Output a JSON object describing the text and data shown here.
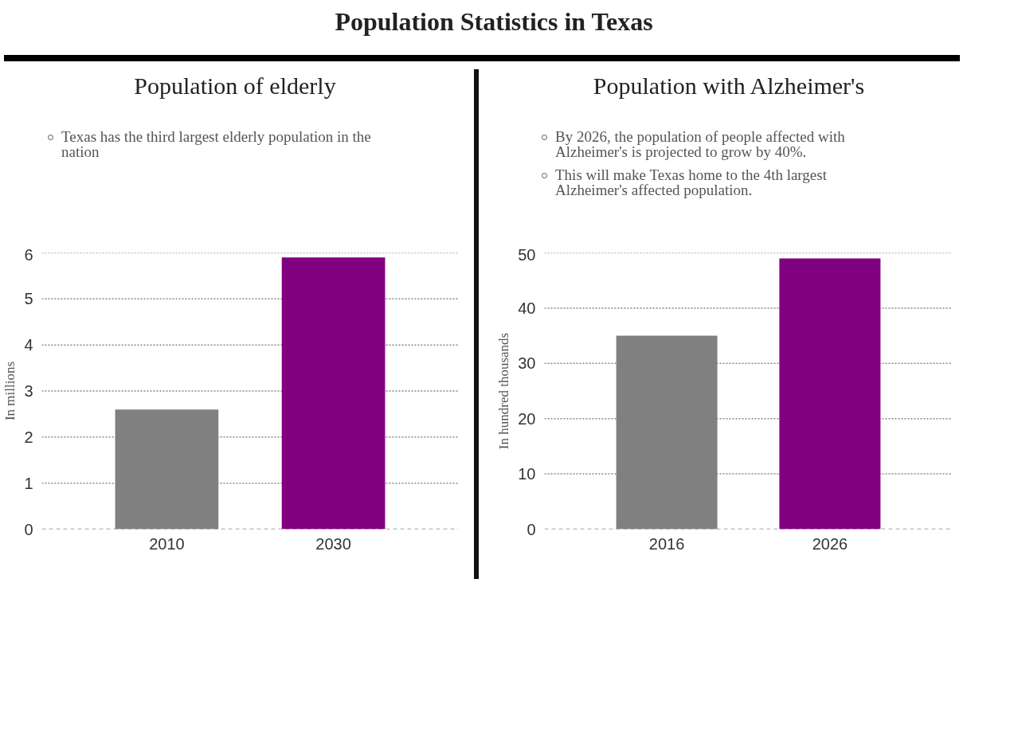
{
  "chart_data": [
    {
      "type": "bar",
      "title": "Population Statistics in Texas",
      "subtitle": "Population of elderly",
      "annotations": [
        "Texas has the third largest elderly population in the nation"
      ],
      "categories": [
        "2010",
        "2030"
      ],
      "values": [
        2.6,
        5.9
      ],
      "colors": [
        "#808080",
        "#800080"
      ],
      "ylabel": "In millions",
      "ylim": [
        0,
        6
      ],
      "yticks": [
        0,
        1,
        2,
        3,
        4,
        5,
        6
      ],
      "grid": "y"
    },
    {
      "type": "bar",
      "subtitle": "Population with Alzheimer's",
      "annotations": [
        "By 2026, the population of people affected with Alzheimer's is projected to grow by 40%.",
        "This will make Texas home to the 4th largest Alzheimer's affected population."
      ],
      "categories": [
        "2016",
        "2026"
      ],
      "values": [
        35,
        49
      ],
      "colors": [
        "#808080",
        "#800080"
      ],
      "ylabel": "In hundred thousands",
      "ylim": [
        0,
        50
      ],
      "yticks": [
        0,
        10,
        20,
        30,
        40,
        50
      ],
      "grid": "y"
    }
  ]
}
